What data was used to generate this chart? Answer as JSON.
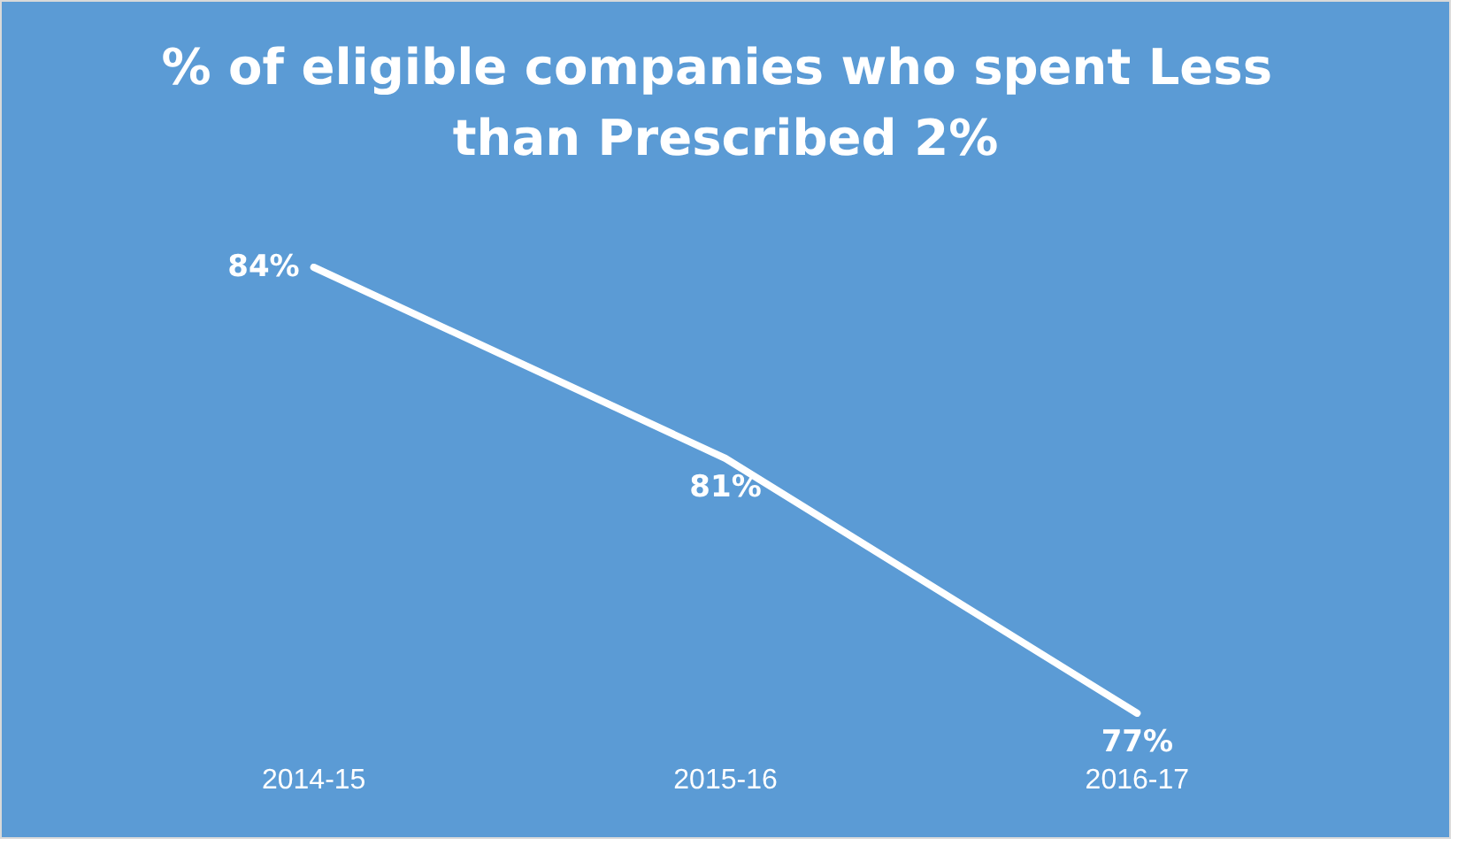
{
  "chart_data": {
    "type": "line",
    "title": "% of eligible companies who spent Less than Prescribed 2%",
    "categories": [
      "2014-15",
      "2015-16",
      "2016-17"
    ],
    "series": [
      {
        "color": "#ffffff",
        "values": [
          84,
          81,
          77
        ],
        "value_labels": [
          "84%",
          "81%",
          "77%"
        ]
      }
    ],
    "grid": false,
    "marker": "none",
    "tick_labels": "x"
  }
}
